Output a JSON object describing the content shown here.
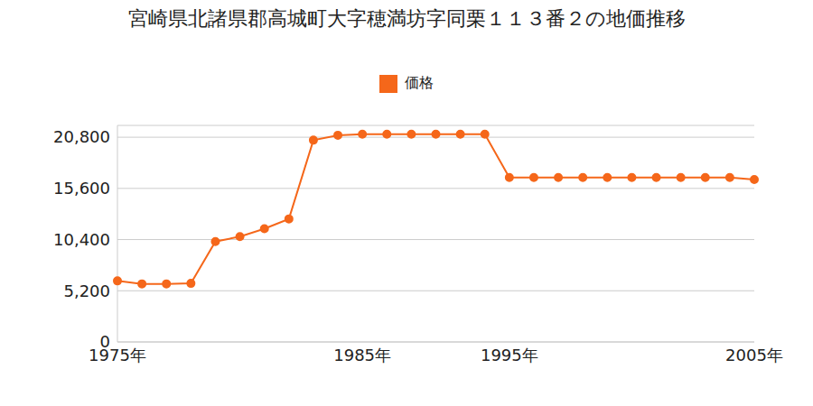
{
  "chart_data": {
    "type": "line",
    "title": "宮崎県北諸県郡高城町大字穂満坊字同栗１１３番２の地価推移",
    "categories": [
      "1975年",
      null,
      null,
      null,
      null,
      null,
      null,
      null,
      null,
      null,
      "1985年",
      null,
      null,
      null,
      null,
      null,
      "1995年",
      null,
      null,
      null,
      null,
      null,
      null,
      null,
      null,
      null,
      "2005年"
    ],
    "series": [
      {
        "name": "価格",
        "color": "#f5671a",
        "marker": "circle",
        "values": [
          6200,
          5900,
          5900,
          5950,
          10200,
          10700,
          11500,
          12500,
          20500,
          21000,
          21100,
          21100,
          21100,
          21100,
          21100,
          21100,
          16700,
          16700,
          16700,
          16700,
          16700,
          16700,
          16700,
          16700,
          16700,
          16700,
          16500
        ]
      }
    ],
    "ylim": [
      0,
      22000
    ],
    "yticks": [
      0,
      {
        "value": 5200,
        "label": "5,200"
      },
      {
        "value": 10400,
        "label": "10,400"
      },
      {
        "value": 15600,
        "label": "15,600"
      },
      {
        "value": 20800,
        "label": "20,800"
      }
    ],
    "grid": true,
    "legend": "top"
  }
}
